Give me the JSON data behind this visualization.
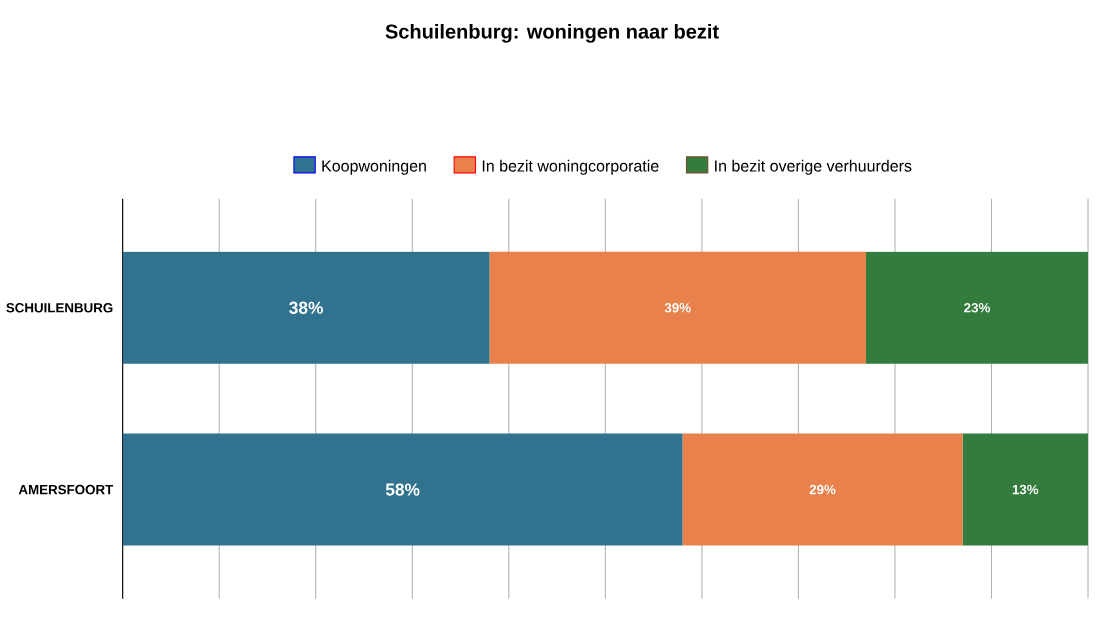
{
  "chart_data": {
    "type": "bar",
    "orientation": "horizontal",
    "stacked": true,
    "title": "Schuilenburg:  woningen naar bezit",
    "categories": [
      "SCHUILENBURG",
      "AMERSFOORT"
    ],
    "series": [
      {
        "name": "Koopwoningen",
        "color": "#31728f",
        "values": [
          38,
          58
        ],
        "value_labels": [
          "38%",
          "58%"
        ]
      },
      {
        "name": "In bezit woningcorporatie",
        "color": "#e8814b",
        "values": [
          39,
          29
        ],
        "value_labels": [
          "39%",
          "29%"
        ]
      },
      {
        "name": "In bezit overige verhuurders",
        "color": "#337c3e",
        "values": [
          23,
          13
        ],
        "value_labels": [
          "23%",
          "13%"
        ]
      }
    ],
    "xlim": [
      0,
      100
    ],
    "xticks": [
      {
        "value": 0,
        "label": null
      },
      {
        "value": 10,
        "label": null
      },
      {
        "value": 20,
        "label": null
      },
      {
        "value": 30,
        "label": null
      },
      {
        "value": 40,
        "label": null
      },
      {
        "value": 50,
        "label": null
      },
      {
        "value": 60,
        "label": null
      },
      {
        "value": 70,
        "label": null
      },
      {
        "value": 80,
        "label": null
      },
      {
        "value": 90,
        "label": null
      },
      {
        "value": 100,
        "label": null
      }
    ],
    "tick_labels": "y",
    "grid": "x",
    "legend": "top"
  }
}
